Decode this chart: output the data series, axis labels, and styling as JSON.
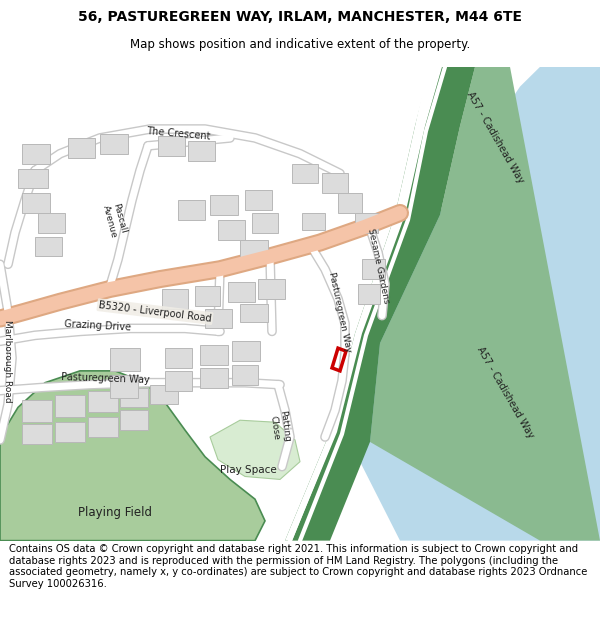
{
  "title_line1": "56, PASTUREGREEN WAY, IRLAM, MANCHESTER, M44 6TE",
  "title_line2": "Map shows position and indicative extent of the property.",
  "footer_text": "Contains OS data © Crown copyright and database right 2021. This information is subject to Crown copyright and database rights 2023 and is reproduced with the permission of HM Land Registry. The polygons (including the associated geometry, namely x, y co-ordinates) are subject to Crown copyright and database rights 2023 Ordnance Survey 100026316.",
  "bg_color": "#f0ede6",
  "road_main_color": "#f5c4a8",
  "road_main_outline": "#dea882",
  "road_minor_color": "#ffffff",
  "road_minor_outline": "#c8c8c8",
  "green_dark": "#4a8c52",
  "green_medium": "#8aba90",
  "green_light": "#c5e0be",
  "green_playing": "#a8cc9c",
  "water_color": "#b8d9ea",
  "building_color": "#dcdcdc",
  "building_outline": "#b8b8b8",
  "property_color": "#cc0000",
  "title_fontsize": 10,
  "footer_fontsize": 7.2
}
